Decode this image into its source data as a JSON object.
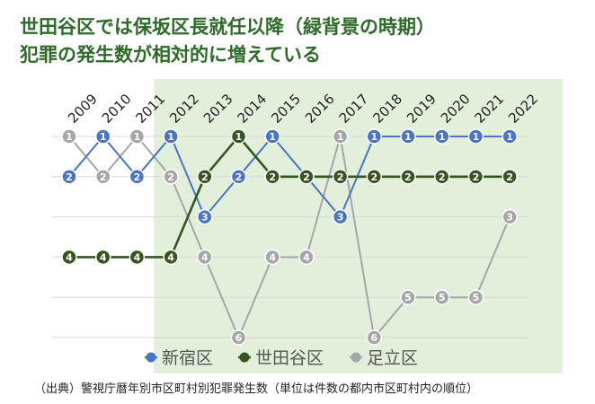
{
  "title_lines": [
    "世田谷区では保坂区長就任以降（緑背景の時期）",
    "犯罪の発生数が相対的に増えている"
  ],
  "source": "（出典）警視庁暦年別市区町村別犯罪発生数（単位は件数の都内市区町村内の順位）",
  "colors": {
    "shinjuku": "#4a74c4",
    "setagaya": "#375423",
    "adachi": "#a6a6a6",
    "highlight_bg": "#e2efda",
    "title": "#2e6b2a"
  },
  "chart_data": {
    "type": "line",
    "x": [
      "2009",
      "2010",
      "2011",
      "2012",
      "2013",
      "2014",
      "2015",
      "2016",
      "2017",
      "2018",
      "2019",
      "2020",
      "2021",
      "2022"
    ],
    "y_axis": "rank",
    "ylim": [
      1,
      6
    ],
    "y_inverted": true,
    "grid": true,
    "highlight_period": [
      "2012",
      "2022"
    ],
    "legend_position": "bottom",
    "series": [
      {
        "name": "新宿区",
        "color": "#4a74c4",
        "values": [
          2,
          1,
          2,
          1,
          3,
          2,
          1,
          2,
          3,
          1,
          1,
          1,
          1,
          1
        ]
      },
      {
        "name": "世田谷区",
        "color": "#375423",
        "values": [
          4,
          4,
          4,
          4,
          2,
          1,
          2,
          2,
          2,
          2,
          2,
          2,
          2,
          2
        ]
      },
      {
        "name": "足立区",
        "color": "#a6a6a6",
        "values": [
          1,
          2,
          1,
          2,
          4,
          6,
          4,
          4,
          1,
          6,
          5,
          5,
          5,
          3
        ]
      }
    ]
  }
}
